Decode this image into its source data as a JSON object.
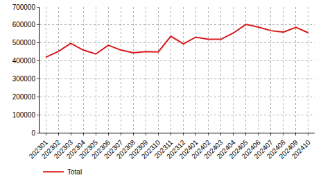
{
  "chart_data": {
    "type": "line",
    "categories": [
      "202301",
      "202302",
      "202303",
      "202304",
      "202305",
      "202306",
      "202307",
      "202308",
      "202309",
      "202310",
      "202311",
      "202312",
      "202401",
      "202402",
      "202403",
      "202404",
      "202405",
      "202406",
      "202407",
      "202408",
      "202409",
      "202410"
    ],
    "series": [
      {
        "name": "Total",
        "color": "#d7191c",
        "values": [
          420000,
          452000,
          497000,
          460000,
          438000,
          487000,
          460000,
          445000,
          452000,
          450000,
          537000,
          495000,
          532000,
          520000,
          520000,
          555000,
          603000,
          588000,
          568000,
          560000,
          587000,
          556000
        ]
      }
    ],
    "ylim": [
      0,
      700000
    ],
    "yticks": [
      0,
      100000,
      200000,
      300000,
      400000,
      500000,
      600000,
      700000
    ],
    "grid": true,
    "legend": "bottom-left"
  }
}
